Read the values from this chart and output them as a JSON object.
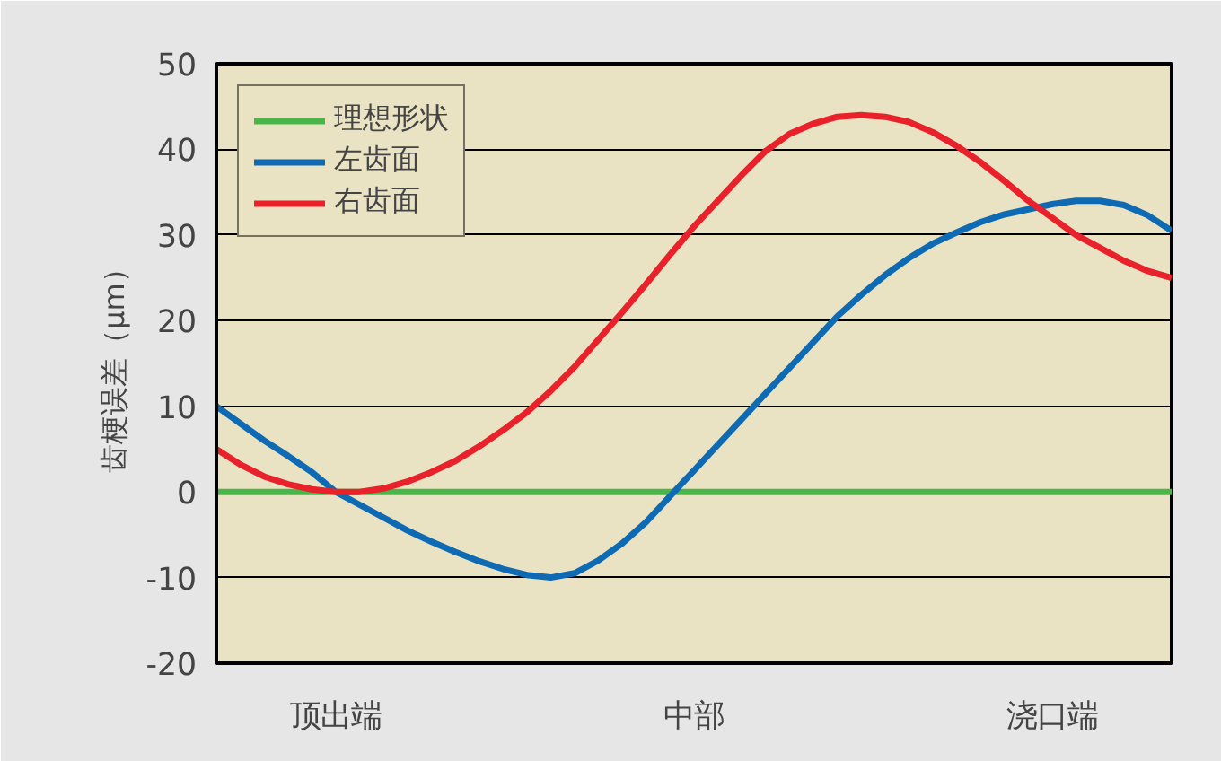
{
  "chart_data": {
    "type": "line",
    "ylabel": "齿梗误差（μm）",
    "ylim": [
      -20,
      50
    ],
    "yticks": [
      -20,
      -10,
      0,
      10,
      20,
      30,
      40,
      50
    ],
    "categories": [
      null,
      null,
      null,
      null,
      null,
      "顶出端",
      null,
      null,
      null,
      null,
      null,
      null,
      null,
      null,
      null,
      null,
      null,
      null,
      null,
      null,
      "中部",
      null,
      null,
      null,
      null,
      null,
      null,
      null,
      null,
      null,
      null,
      null,
      null,
      null,
      null,
      "浇口端",
      null,
      null,
      null,
      null,
      null
    ],
    "grid": "y",
    "legend": "top left",
    "line_style": "solid",
    "series": [
      {
        "name": "理想形状",
        "color": "#4ab548",
        "values": [
          0,
          0,
          0,
          0,
          0,
          0,
          0,
          0,
          0,
          0,
          0,
          0,
          0,
          0,
          0,
          0,
          0,
          0,
          0,
          0,
          0,
          0,
          0,
          0,
          0,
          0,
          0,
          0,
          0,
          0,
          0,
          0,
          0,
          0,
          0,
          0,
          0,
          0,
          0,
          0,
          0
        ]
      },
      {
        "name": "左齿面",
        "color": "#0f6ab4",
        "values": [
          10,
          8,
          6,
          4.2,
          2.3,
          0,
          -1.5,
          -3,
          -4.5,
          -5.8,
          -7,
          -8.1,
          -9,
          -9.7,
          -10,
          -9.5,
          -8,
          -6,
          -3.5,
          -0.5,
          2.5,
          5.5,
          8.5,
          11.5,
          14.5,
          17.5,
          20.5,
          23,
          25.3,
          27.3,
          29,
          30.3,
          31.5,
          32.4,
          33,
          33.6,
          34,
          34,
          33.5,
          32.3,
          30.5
        ]
      },
      {
        "name": "右齿面",
        "color": "#e8212a",
        "values": [
          5,
          3.2,
          1.8,
          0.9,
          0.3,
          0,
          0,
          0.4,
          1.2,
          2.3,
          3.6,
          5.3,
          7.2,
          9.3,
          11.8,
          14.6,
          17.8,
          21,
          24.3,
          27.7,
          31,
          34,
          37,
          39.8,
          41.8,
          43,
          43.8,
          44,
          43.8,
          43.2,
          42,
          40.4,
          38.5,
          36.3,
          34,
          32,
          30,
          28.5,
          27,
          25.8,
          25
        ]
      }
    ]
  }
}
